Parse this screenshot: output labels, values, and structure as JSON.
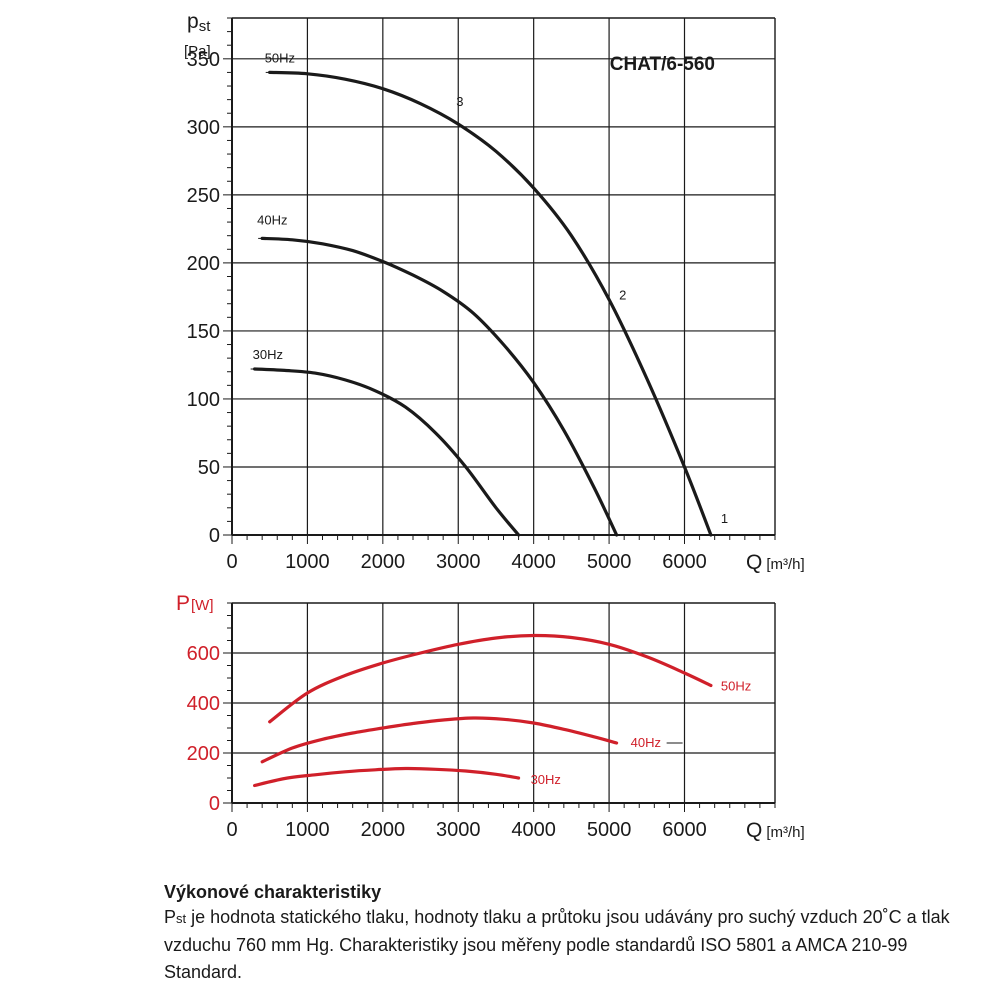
{
  "chart_data": [
    {
      "type": "line",
      "title": "CHAT/6-560",
      "ylabel_main": "p",
      "ylabel_sub": "st",
      "ylabel_unit": "[Pa]",
      "xlabel_main": "Q",
      "xlabel_unit": "[m³/h]",
      "xlim": [
        0,
        7200
      ],
      "ylim": [
        0,
        380
      ],
      "xticks": [
        0,
        1000,
        2000,
        3000,
        4000,
        5000,
        6000
      ],
      "yticks": [
        0,
        50,
        100,
        150,
        200,
        250,
        300,
        350
      ],
      "grid": true,
      "color": "#1a1a1a",
      "series": [
        {
          "name": "50Hz",
          "x": [
            500,
            1000,
            1500,
            2000,
            2500,
            3000,
            3500,
            4000,
            4500,
            5000,
            5500,
            6000,
            6350
          ],
          "y": [
            340,
            339,
            335,
            328,
            317,
            302,
            282,
            255,
            220,
            173,
            115,
            50,
            0
          ]
        },
        {
          "name": "40Hz",
          "x": [
            400,
            800,
            1200,
            1600,
            2000,
            2400,
            2800,
            3200,
            3600,
            4000,
            4400,
            4800,
            5100
          ],
          "y": [
            218,
            217,
            214,
            209,
            201,
            191,
            179,
            163,
            140,
            112,
            77,
            35,
            0
          ]
        },
        {
          "name": "30Hz",
          "x": [
            300,
            700,
            1100,
            1500,
            1900,
            2300,
            2700,
            3100,
            3500,
            3800
          ],
          "y": [
            122,
            121,
            119,
            114,
            106,
            94,
            75,
            50,
            20,
            0
          ]
        }
      ],
      "annotations": [
        {
          "text": "3",
          "x": 3000,
          "y": 302
        },
        {
          "text": "2",
          "x": 5000,
          "y": 173
        },
        {
          "text": "1",
          "x": 6350,
          "y": 0
        }
      ]
    },
    {
      "type": "line",
      "ylabel_main": "P",
      "ylabel_unit": "[W]",
      "xlabel_main": "Q",
      "xlabel_unit": "[m³/h]",
      "xlim": [
        0,
        7200
      ],
      "ylim": [
        0,
        800
      ],
      "xticks": [
        0,
        1000,
        2000,
        3000,
        4000,
        5000,
        6000
      ],
      "yticks": [
        0,
        200,
        400,
        600
      ],
      "grid": true,
      "color": "#d0202a",
      "series": [
        {
          "name": "50Hz",
          "x": [
            500,
            1000,
            1500,
            2000,
            2500,
            3000,
            3500,
            4000,
            4500,
            5000,
            5500,
            6000,
            6350
          ],
          "y": [
            325,
            440,
            510,
            560,
            600,
            635,
            660,
            670,
            662,
            635,
            585,
            520,
            470
          ]
        },
        {
          "name": "40Hz",
          "x": [
            400,
            800,
            1200,
            1600,
            2000,
            2400,
            2800,
            3200,
            3600,
            4000,
            4400,
            4800,
            5100
          ],
          "y": [
            165,
            220,
            255,
            280,
            300,
            318,
            332,
            340,
            335,
            320,
            295,
            265,
            240
          ]
        },
        {
          "name": "30Hz",
          "x": [
            300,
            700,
            1100,
            1500,
            1900,
            2300,
            2700,
            3100,
            3500,
            3800
          ],
          "y": [
            70,
            98,
            113,
            125,
            133,
            138,
            135,
            128,
            115,
            100
          ]
        }
      ]
    }
  ],
  "caption": {
    "title": "Výkonové charakteristiky",
    "lead": "P",
    "lead_sub": "st",
    "text": " je hodnota statického tlaku, hodnoty tlaku a průtoku jsou udávány pro suchý vzduch 20˚C a tlak vzduchu 760 mm Hg. Charakteristiky jsou měřeny podle standardů ISO 5801 a AMCA 210-99 Standard."
  }
}
